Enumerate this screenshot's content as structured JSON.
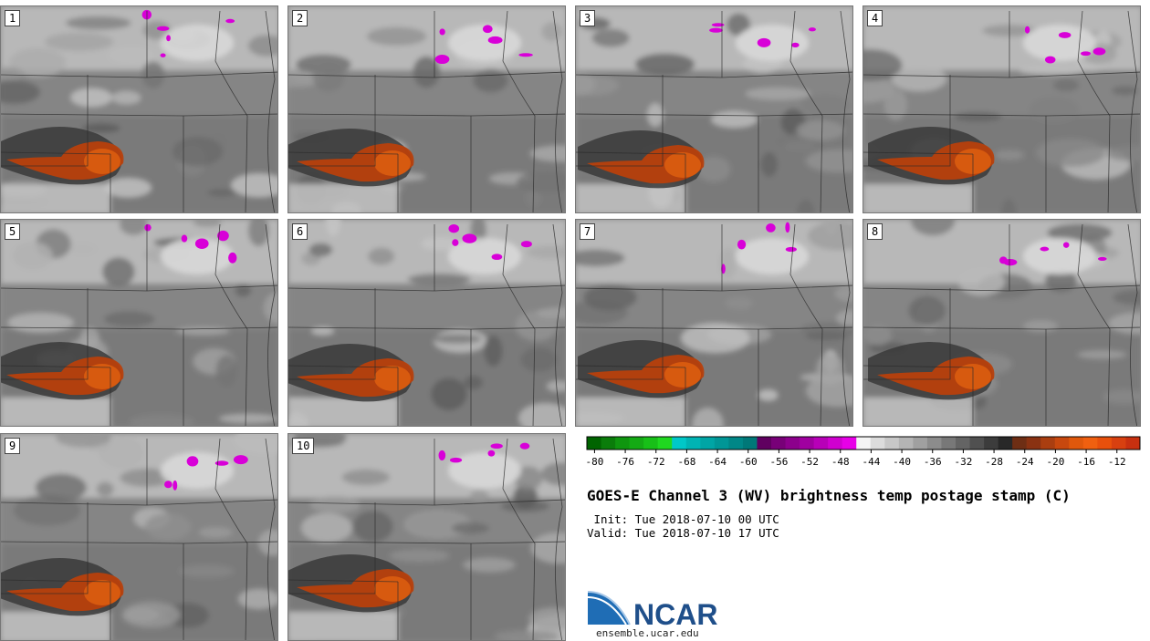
{
  "panels": [
    {
      "label": "1",
      "pos": "row1-col1"
    },
    {
      "label": "2",
      "pos": "row1-col2"
    },
    {
      "label": "3",
      "pos": "row1-col3"
    },
    {
      "label": "4",
      "pos": "row1-col4"
    },
    {
      "label": "5",
      "pos": "row2-col1"
    },
    {
      "label": "6",
      "pos": "row2-col2"
    },
    {
      "label": "7",
      "pos": "row2-col3"
    },
    {
      "label": "8",
      "pos": "row2-col4"
    },
    {
      "label": "9",
      "pos": "row3-col1"
    },
    {
      "label": "10",
      "pos": "row3-col2"
    }
  ],
  "colorbar": {
    "colors": [
      "#006400",
      "#0a7d0a",
      "#0f960f",
      "#14aa14",
      "#18c018",
      "#20d820",
      "#00c8c8",
      "#00b4b4",
      "#00a5a5",
      "#009696",
      "#008787",
      "#007878",
      "#600060",
      "#780078",
      "#8c008c",
      "#a000a0",
      "#b800b8",
      "#d000d0",
      "#e800e8",
      "#f4f4f4",
      "#dcdcdc",
      "#c8c8c8",
      "#b4b4b4",
      "#a0a0a0",
      "#8c8c8c",
      "#787878",
      "#646464",
      "#505050",
      "#3c3c3c",
      "#282828",
      "#6e2e14",
      "#8a3212",
      "#aa3e10",
      "#c8480e",
      "#e0580c",
      "#f06010",
      "#e8500c",
      "#d84010",
      "#c83010"
    ],
    "tick_labels": [
      "-80",
      "-76",
      "-72",
      "-68",
      "-64",
      "-60",
      "-56",
      "-52",
      "-48",
      "-44",
      "-40",
      "-36",
      "-32",
      "-28",
      "-24",
      "-20",
      "-16",
      "-12"
    ],
    "min": -81,
    "max": -9,
    "units": "C"
  },
  "title": "GOES-E Channel 3 (WV) brightness temp postage stamp (C)",
  "init_line": " Init: Tue 2018-07-10 00 UTC",
  "valid_line": "Valid: Tue 2018-07-10 17 UTC",
  "logo_text": "NCAR",
  "site": "ensemble.ucar.edu"
}
